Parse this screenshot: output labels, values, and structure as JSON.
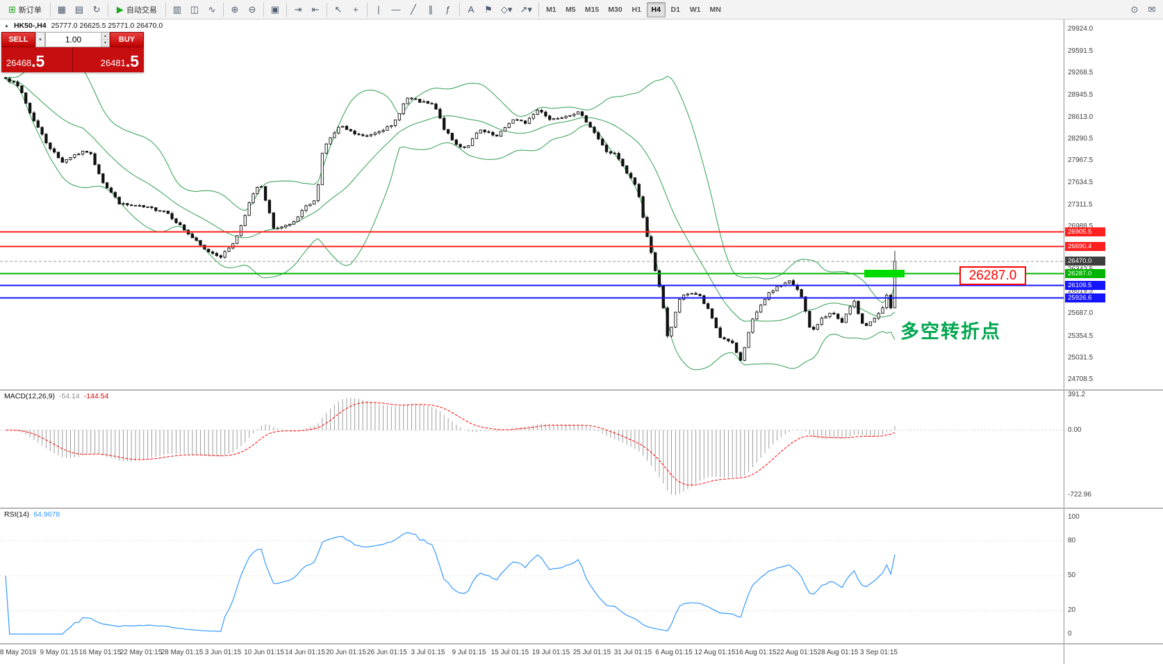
{
  "toolbar": {
    "new_order": {
      "label": "新订单",
      "glyph": "⊞"
    },
    "autotrading": {
      "label": "自动交易",
      "glyph": "▶"
    },
    "window_buttons": [
      {
        "name": "charts-window-button",
        "glyph": "▦"
      },
      {
        "name": "profiles-button",
        "glyph": "▤"
      },
      {
        "name": "refresh-button",
        "glyph": "↻"
      }
    ],
    "tool_buttons": [
      {
        "sep": true
      },
      {
        "name": "bar-chart-button",
        "glyph": "▥"
      },
      {
        "name": "candlestick-chart-button",
        "glyph": "◫"
      },
      {
        "name": "line-chart-button",
        "glyph": "∿"
      },
      {
        "sep": true
      },
      {
        "name": "zoom-in-button",
        "glyph": "⊕"
      },
      {
        "name": "zoom-out-button",
        "glyph": "⊖"
      },
      {
        "sep": true
      },
      {
        "name": "tile-windows-button",
        "glyph": "▣"
      },
      {
        "sep": true
      },
      {
        "name": "auto-scroll-button",
        "glyph": "⇥"
      },
      {
        "name": "chart-shift-button",
        "glyph": "⇤"
      },
      {
        "sep": true
      },
      {
        "name": "cursor-button",
        "glyph": "↖"
      },
      {
        "name": "crosshair-button",
        "glyph": "+"
      },
      {
        "sep": true
      },
      {
        "name": "vertical-line-button",
        "glyph": "|"
      },
      {
        "name": "horizontal-line-button",
        "glyph": "—"
      },
      {
        "name": "trendline-button",
        "glyph": "╱"
      },
      {
        "name": "equidistant-channel-button",
        "glyph": "∥"
      },
      {
        "name": "fibonacci-button",
        "glyph": "ƒ"
      },
      {
        "sep": true
      },
      {
        "name": "text-button",
        "glyph": "A"
      },
      {
        "name": "text-label-button",
        "glyph": "⚑"
      },
      {
        "name": "shapes-button",
        "glyph": "◇▾"
      },
      {
        "name": "arrows-button",
        "glyph": "↗▾"
      },
      {
        "sep": true
      }
    ],
    "timeframes": [
      {
        "label": "M1"
      },
      {
        "label": "M5"
      },
      {
        "label": "M15"
      },
      {
        "label": "M30"
      },
      {
        "label": "H1"
      },
      {
        "label": "H4",
        "active": true
      },
      {
        "label": "D1"
      },
      {
        "label": "W1"
      },
      {
        "label": "MN"
      }
    ],
    "right_buttons": [
      {
        "name": "search-button",
        "glyph": "⊙"
      },
      {
        "name": "community-button",
        "glyph": "✉"
      }
    ]
  },
  "chart": {
    "collapse_glyph": "▲",
    "title": "HK50-,H4",
    "ohlc": "25777.0 26625.5 25771.0 26470.0"
  },
  "trade_panel": {
    "sell_label": "SELL",
    "buy_label": "BUY",
    "volume": "1.00",
    "sell_price_base": "26468",
    "sell_price_frac": ".5",
    "buy_price_base": "26481",
    "buy_price_frac": ".5"
  },
  "annotations": {
    "level_callout": "26287.0",
    "turning_point": "多空转折点"
  },
  "chart_data": {
    "type": "candlestick",
    "symbol": "HK50-",
    "timeframe": "H4",
    "current_bar": {
      "open": 25777.0,
      "high": 26625.5,
      "low": 25771.0,
      "close": 26470.0
    },
    "price_axis": {
      "min": 24708.5,
      "max": 29924.0,
      "ticks": [
        "29924.0",
        "29591.5",
        "29268.5",
        "28945.5",
        "28613.0",
        "28290.5",
        "27967.5",
        "27634.5",
        "27311.5",
        "26988.5",
        "26665.5",
        "26342.5",
        "26019.5",
        "25687.0",
        "25354.5",
        "25031.5",
        "24708.5"
      ]
    },
    "time_axis": [
      "8 May 2019",
      "9 May 01:15",
      "16 May 01:15",
      "22 May 01:15",
      "28 May 01:15",
      "3 Jun 01:15",
      "10 Jun 01:15",
      "14 Jun 01:15",
      "20 Jun 01:15",
      "26 Jun 01:15",
      "3 Jul 01:15",
      "9 Jul 01:15",
      "15 Jul 01:15",
      "19 Jul 01:15",
      "25 Jul 01:15",
      "31 Jul 01:15",
      "6 Aug 01:15",
      "12 Aug 01:15",
      "16 Aug 01:15",
      "22 Aug 01:15",
      "28 Aug 01:15",
      "3 Sep 01:15"
    ],
    "levels": [
      {
        "value": 26905.5,
        "label": "26905.5",
        "color": "#ff2020",
        "style": "solid",
        "line_width": 2
      },
      {
        "value": 26690.4,
        "label": "26690.4",
        "color": "#ff2020",
        "style": "solid",
        "line_width": 2
      },
      {
        "value": 26470.0,
        "label": "26470.0",
        "color": "#9a9a9a",
        "label_bg": "#3f3f3f",
        "style": "dashed",
        "line_width": 1,
        "current": true
      },
      {
        "value": 26287.0,
        "label": "26287.0",
        "color": "#00b400",
        "style": "solid",
        "line_width": 2
      },
      {
        "value": 26109.5,
        "label": "26109.5",
        "color": "#1414ff",
        "style": "solid",
        "line_width": 2
      },
      {
        "value": 25926.6,
        "label": "25926.6",
        "color": "#1414ff",
        "style": "solid",
        "line_width": 2
      }
    ],
    "bollinger": {
      "period": 20,
      "deviation": 2,
      "color": "#2f9e4f"
    },
    "macd": {
      "title": "MACD(12,26,9)",
      "value_main": "-54.14",
      "value_signal": "-144.54",
      "scale_top": "391.2",
      "scale_zero": "0.00",
      "scale_bottom": "-722.96",
      "histogram_color": "#9c9c9c",
      "signal_color": "#ff0000"
    },
    "rsi": {
      "title": "RSI(14)",
      "value": "64.9678",
      "scale": [
        "100",
        "80",
        "50",
        "20",
        "0"
      ],
      "levels": [
        80,
        50,
        20
      ],
      "line_color": "#3399ff"
    },
    "candles_count": 220,
    "noise_volatility": 42,
    "close_path": [
      [
        0.0,
        29210
      ],
      [
        0.016,
        29050
      ],
      [
        0.027,
        28690
      ],
      [
        0.047,
        28210
      ],
      [
        0.063,
        27950
      ],
      [
        0.078,
        28060
      ],
      [
        0.094,
        28110
      ],
      [
        0.11,
        27640
      ],
      [
        0.129,
        27320
      ],
      [
        0.157,
        27270
      ],
      [
        0.18,
        27220
      ],
      [
        0.2,
        26950
      ],
      [
        0.224,
        26640
      ],
      [
        0.243,
        26540
      ],
      [
        0.259,
        26800
      ],
      [
        0.275,
        27370
      ],
      [
        0.286,
        27640
      ],
      [
        0.302,
        26950
      ],
      [
        0.322,
        27010
      ],
      [
        0.337,
        27270
      ],
      [
        0.349,
        27375
      ],
      [
        0.357,
        28160
      ],
      [
        0.376,
        28480
      ],
      [
        0.392,
        28370
      ],
      [
        0.404,
        28320
      ],
      [
        0.42,
        28420
      ],
      [
        0.435,
        28480
      ],
      [
        0.451,
        28900
      ],
      [
        0.467,
        28840
      ],
      [
        0.482,
        28790
      ],
      [
        0.494,
        28420
      ],
      [
        0.506,
        28210
      ],
      [
        0.518,
        28160
      ],
      [
        0.533,
        28420
      ],
      [
        0.553,
        28320
      ],
      [
        0.569,
        28580
      ],
      [
        0.584,
        28530
      ],
      [
        0.6,
        28740
      ],
      [
        0.612,
        28580
      ],
      [
        0.627,
        28630
      ],
      [
        0.643,
        28690
      ],
      [
        0.655,
        28530
      ],
      [
        0.663,
        28370
      ],
      [
        0.675,
        28110
      ],
      [
        0.686,
        28060
      ],
      [
        0.698,
        27790
      ],
      [
        0.71,
        27580
      ],
      [
        0.722,
        26800
      ],
      [
        0.729,
        26430
      ],
      [
        0.737,
        26010
      ],
      [
        0.745,
        25280
      ],
      [
        0.757,
        25900
      ],
      [
        0.769,
        26010
      ],
      [
        0.78,
        25960
      ],
      [
        0.792,
        25700
      ],
      [
        0.804,
        25330
      ],
      [
        0.816,
        25280
      ],
      [
        0.827,
        24960
      ],
      [
        0.839,
        25590
      ],
      [
        0.847,
        25750
      ],
      [
        0.859,
        26010
      ],
      [
        0.871,
        26115
      ],
      [
        0.882,
        26170
      ],
      [
        0.894,
        26010
      ],
      [
        0.906,
        25380
      ],
      [
        0.918,
        25640
      ],
      [
        0.929,
        25700
      ],
      [
        0.941,
        25540
      ],
      [
        0.953,
        25900
      ],
      [
        0.965,
        25490
      ],
      [
        0.976,
        25590
      ],
      [
        0.988,
        25800
      ],
      [
        1.0,
        26470
      ]
    ]
  }
}
